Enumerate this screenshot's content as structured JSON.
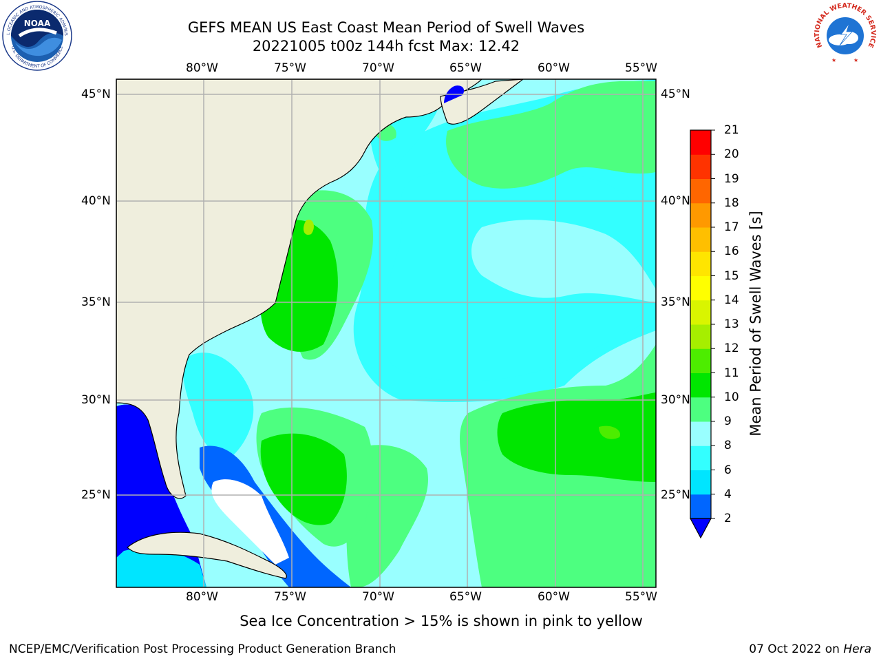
{
  "title": {
    "line1": "GEFS MEAN US East Coast Mean Period of Swell Waves",
    "line2": "20221005 t00z 144h fcst   Max: 12.42"
  },
  "map": {
    "projection": "lat-lon",
    "lon_range": [
      -85,
      -54
    ],
    "lat_range": [
      20.5,
      45.8
    ],
    "lon_ticks": [
      "80°W",
      "75°W",
      "70°W",
      "65°W",
      "60°W",
      "55°W"
    ],
    "lat_ticks": [
      "25°N",
      "30°N",
      "35°N",
      "40°N",
      "45°N"
    ],
    "gridlines": true,
    "land_color": "#efeedd",
    "masked_color": "#ffffff"
  },
  "colorbar": {
    "label": "Mean Period of Swell Waves [s]",
    "ticks": [
      "2",
      "4",
      "6",
      "8",
      "9",
      "10",
      "11",
      "12",
      "13",
      "14",
      "15",
      "16",
      "17",
      "18",
      "19",
      "20",
      "21"
    ],
    "colors": [
      "#0000ff",
      "#0066ff",
      "#00e5ff",
      "#33ffff",
      "#99ffff",
      "#4dff80",
      "#00e600",
      "#4ded00",
      "#a6ee00",
      "#d9f500",
      "#ffff00",
      "#ffe500",
      "#ffbf00",
      "#ff9900",
      "#ff6600",
      "#ff3300",
      "#ff0000"
    ],
    "extend": "min"
  },
  "subtitle": "Sea Ice Concentration > 15% is shown in pink to yellow",
  "footer": {
    "credit": "NCEP/EMC/Verification Post Processing Product Generation Branch",
    "date": "07 Oct 2022 on ",
    "machine": "Hera"
  },
  "logos": {
    "noaa": "NOAA",
    "noaa_ring": "NATIONAL OCEANIC AND ATMOSPHERIC ADMINISTRATION",
    "noaa_ring_bottom": "U.S. DEPARTMENT OF COMMERCE",
    "nws_ring": "NATIONAL WEATHER SERVICE"
  }
}
